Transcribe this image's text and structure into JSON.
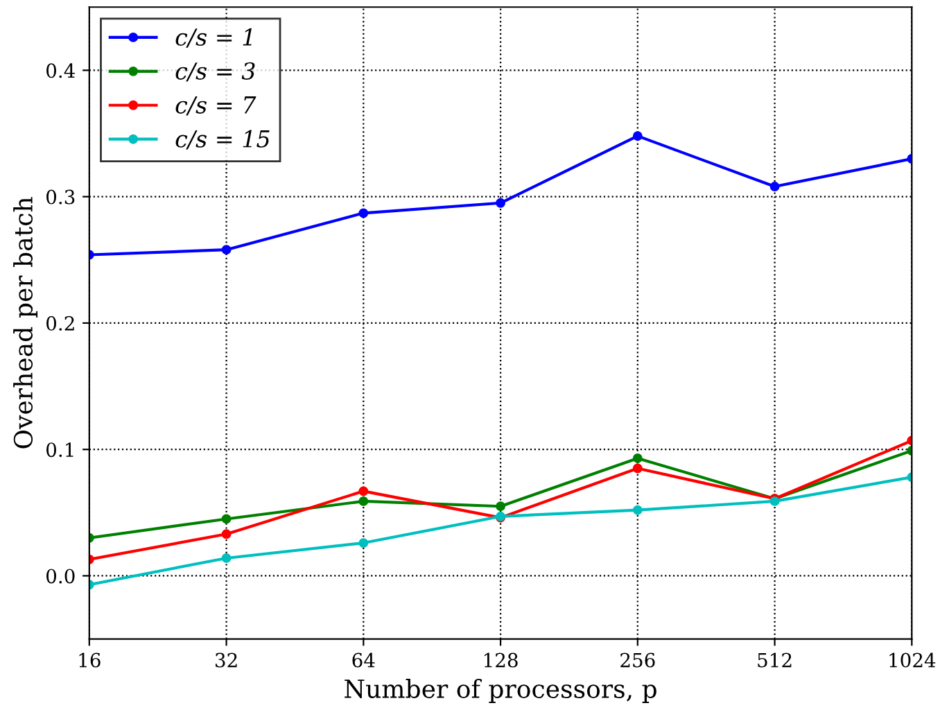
{
  "chart_data": {
    "type": "line",
    "xlabel": "Number of processors, p",
    "ylabel": "Overhead per batch",
    "x": [
      16,
      32,
      64,
      128,
      256,
      512,
      1024
    ],
    "series": [
      {
        "name": "c/s = 1",
        "color": "#0000ff",
        "values": [
          0.254,
          0.258,
          0.287,
          0.295,
          0.348,
          0.308,
          0.33
        ]
      },
      {
        "name": "c/s = 3",
        "color": "#008000",
        "values": [
          0.03,
          0.045,
          0.059,
          0.055,
          0.093,
          0.061,
          0.099
        ]
      },
      {
        "name": "c/s = 7",
        "color": "#ff0000",
        "values": [
          0.013,
          0.033,
          0.067,
          0.046,
          0.085,
          0.061,
          0.107
        ]
      },
      {
        "name": "c/s = 15",
        "color": "#00bfbf",
        "values": [
          -0.007,
          0.014,
          0.026,
          0.047,
          0.052,
          0.059,
          0.078
        ]
      }
    ],
    "log": "x",
    "xlim": [
      16,
      1024
    ],
    "xticks": [
      16,
      32,
      64,
      128,
      256,
      512,
      1024
    ],
    "ylim": [
      -0.05,
      0.45
    ],
    "yticks": [
      {
        "value": 0,
        "label": "0.0"
      },
      0.1,
      0.2,
      0.3,
      0.4
    ],
    "grid": true,
    "legend": "top left",
    "marker": "circle",
    "line_style": "solid"
  }
}
